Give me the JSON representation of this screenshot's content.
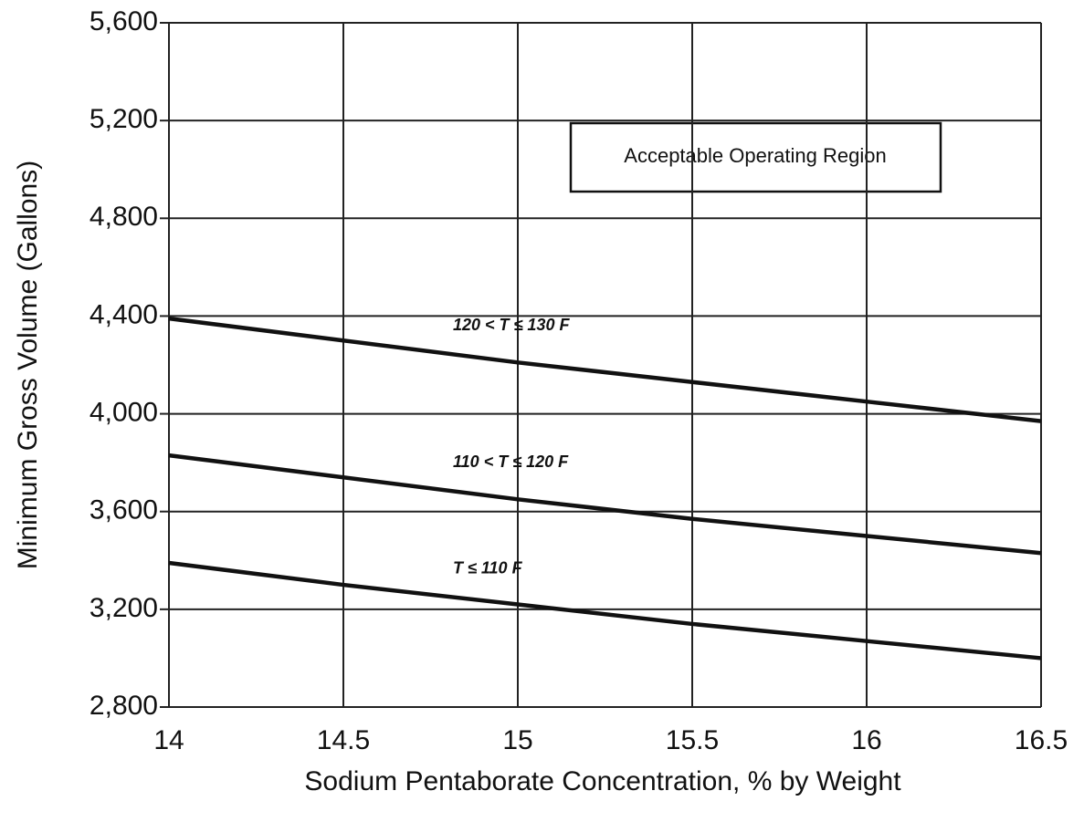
{
  "chart_data": {
    "type": "line",
    "xlabel": "Sodium Pentaborate Concentration, % by Weight",
    "ylabel": "Minimum Gross Volume (Gallons)",
    "annotation": "Acceptable Operating Region",
    "x": [
      14,
      14.5,
      15,
      15.5,
      16,
      16.5
    ],
    "series": [
      {
        "name": "120 < T ≤ 130 F",
        "color": "#111111",
        "values": [
          4390,
          4300,
          4210,
          4130,
          4050,
          3970
        ]
      },
      {
        "name": "110 < T ≤ 120 F",
        "color": "#111111",
        "values": [
          3830,
          3740,
          3650,
          3570,
          3500,
          3430
        ]
      },
      {
        "name": "T ≤ 110 F",
        "color": "#111111",
        "values": [
          3390,
          3300,
          3220,
          3140,
          3070,
          3000
        ]
      }
    ],
    "xlim": [
      14,
      16.5
    ],
    "xticks": [
      14,
      14.5,
      15,
      15.5,
      16,
      16.5
    ],
    "ylim": [
      2800,
      5600
    ],
    "yticks": [
      {
        "value": 2800,
        "label": "2,800"
      },
      {
        "value": 3200,
        "label": "3,200"
      },
      {
        "value": 3600,
        "label": "3,600"
      },
      {
        "value": 4000,
        "label": "4,000"
      },
      {
        "value": 4400,
        "label": "4,400"
      },
      {
        "value": 4800,
        "label": "4,800"
      },
      {
        "value": 5200,
        "label": "5,200"
      },
      {
        "value": 5600,
        "label": "5,600"
      }
    ],
    "grid": true
  }
}
